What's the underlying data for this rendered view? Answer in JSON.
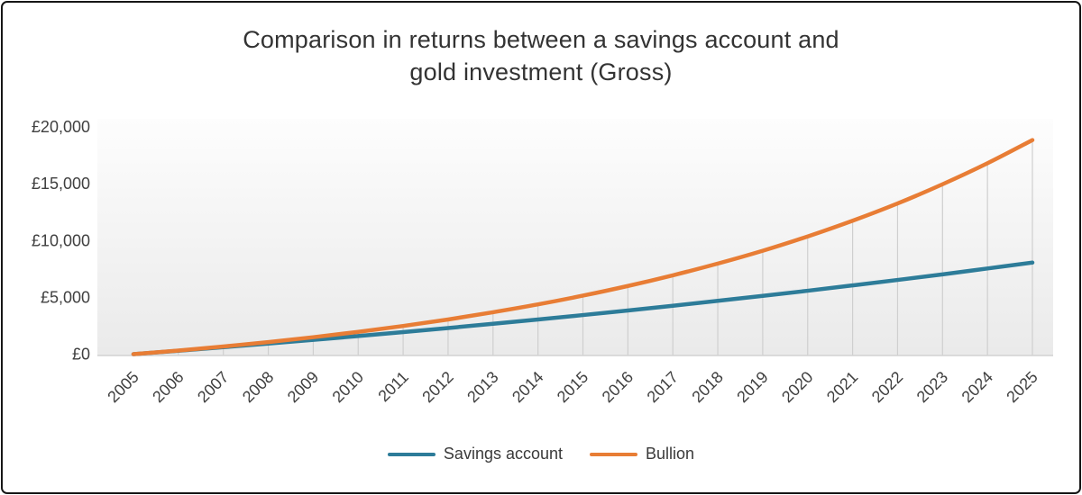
{
  "chart_data": {
    "type": "line",
    "title": "Comparison in returns between a savings account and gold investment (Gross)",
    "title_lines": {
      "line1": "Comparison in returns between a savings account and",
      "line2": "gold investment (Gross)"
    },
    "categories": [
      "2005",
      "2006",
      "2007",
      "2008",
      "2009",
      "2010",
      "2011",
      "2012",
      "2013",
      "2014",
      "2015",
      "2016",
      "2017",
      "2018",
      "2019",
      "2020",
      "2021",
      "2022",
      "2023",
      "2024",
      "2025"
    ],
    "series": [
      {
        "name": "Savings account",
        "color": "#2D7C99",
        "values": [
          0,
          300,
          610,
          930,
          1260,
          1590,
          1940,
          2300,
          2670,
          3050,
          3440,
          3840,
          4260,
          4690,
          5130,
          5580,
          6050,
          6530,
          7020,
          7540,
          8060
        ]
      },
      {
        "name": "Bullion",
        "color": "#E87D35",
        "values": [
          0,
          320,
          670,
          1060,
          1490,
          1960,
          2480,
          3050,
          3690,
          4380,
          5150,
          6000,
          6940,
          7970,
          9100,
          10360,
          11740,
          13260,
          14950,
          16800,
          18840
        ]
      }
    ],
    "ylabel": "",
    "xlabel": "",
    "ylim": [
      0,
      20000
    ],
    "ytick_values": [
      0,
      5000,
      10000,
      15000,
      20000
    ],
    "ytick_labels": [
      "£0",
      "£5,000",
      "£10,000",
      "£15,000",
      "£20,000"
    ],
    "currency": "£",
    "grid": "vertical drop lines from Bullion series to x-axis",
    "legend_position": "bottom",
    "x_label_rotation_deg": -45
  },
  "style": {
    "plot_bg_top": "#fdfdfd",
    "plot_bg_bottom": "#eaeaea",
    "drop_line_color": "#cfcfcf",
    "axis_line_color": "#d2d2d2",
    "tick_label_color": "#404040",
    "title_color": "#333333",
    "frame_border_color": "#161616"
  }
}
